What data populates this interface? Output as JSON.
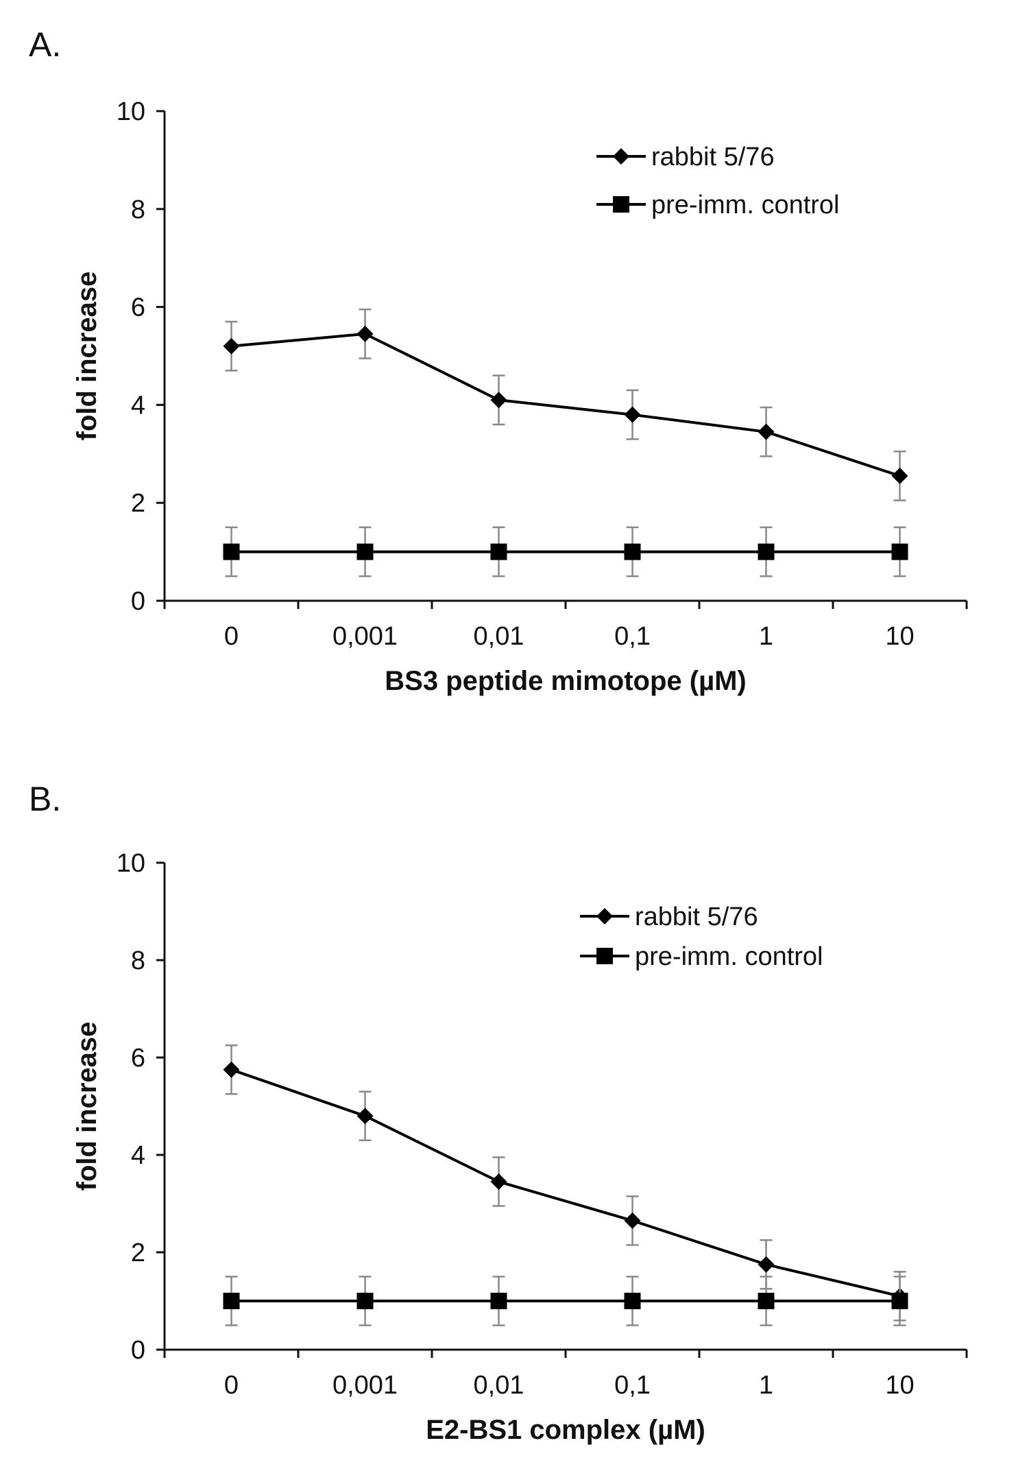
{
  "chart_data": [
    {
      "type": "line",
      "panel_label": "A.",
      "title": "",
      "xlabel": "BS3 peptide mimotope (µM)",
      "ylabel": "fold increase",
      "categories": [
        "0",
        "0,001",
        "0,01",
        "0,1",
        "1",
        "10"
      ],
      "ylim": [
        0,
        10
      ],
      "yticks": [
        "0",
        "2",
        "4",
        "6",
        "8",
        "10"
      ],
      "grid": false,
      "legend_position": "top-right",
      "series": [
        {
          "name": "rabbit 5/76",
          "marker": "diamond",
          "values": [
            5.2,
            5.45,
            4.1,
            3.8,
            3.45,
            2.55
          ],
          "errors": [
            0.5,
            0.5,
            0.5,
            0.5,
            0.5,
            0.5
          ]
        },
        {
          "name": "pre-imm. control",
          "marker": "square",
          "values": [
            1.0,
            1.0,
            1.0,
            1.0,
            1.0,
            1.0
          ],
          "errors": [
            0.5,
            0.5,
            0.5,
            0.5,
            0.5,
            0.5
          ]
        }
      ]
    },
    {
      "type": "line",
      "panel_label": "B.",
      "title": "",
      "xlabel": "E2-BS1 complex (µM)",
      "ylabel": "fold increase",
      "categories": [
        "0",
        "0,001",
        "0,01",
        "0,1",
        "1",
        "10"
      ],
      "ylim": [
        0,
        10
      ],
      "yticks": [
        "0",
        "2",
        "4",
        "6",
        "8",
        "10"
      ],
      "grid": false,
      "legend_position": "top-right",
      "series": [
        {
          "name": "rabbit 5/76",
          "marker": "diamond",
          "values": [
            5.75,
            4.8,
            3.45,
            2.65,
            1.75,
            1.1
          ],
          "errors": [
            0.5,
            0.5,
            0.5,
            0.5,
            0.5,
            0.5
          ]
        },
        {
          "name": "pre-imm. control",
          "marker": "square",
          "values": [
            1.0,
            1.0,
            1.0,
            1.0,
            1.0,
            1.0
          ],
          "errors": [
            0.5,
            0.5,
            0.5,
            0.5,
            0.5,
            0.5
          ]
        }
      ]
    }
  ]
}
